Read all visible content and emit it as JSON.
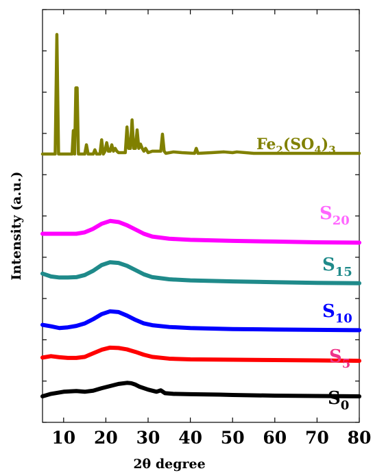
{
  "chart_data": {
    "type": "line",
    "title": "",
    "xlabel": "2θ degree",
    "ylabel": "Intensity (a.u.)",
    "xlim": [
      5,
      80
    ],
    "xticks": [
      10,
      20,
      30,
      40,
      50,
      60,
      70,
      80
    ],
    "xtick_labels": [
      "10",
      "20",
      "30",
      "40",
      "50",
      "60",
      "70",
      "80"
    ],
    "y_ticks_labeled": false,
    "grid": false,
    "legend": "inline-labels-right",
    "series": [
      {
        "key": "s0",
        "label_main": "S",
        "label_sub": "0",
        "color": "#000000",
        "x": [
          5,
          7,
          10,
          13,
          15,
          17,
          19,
          21,
          23,
          25,
          26,
          27,
          28,
          30,
          32,
          33,
          34,
          36,
          40,
          47,
          50,
          60,
          70,
          80
        ],
        "y": [
          0.015,
          0.05,
          0.08,
          0.09,
          0.08,
          0.095,
          0.13,
          0.16,
          0.19,
          0.205,
          0.2,
          0.18,
          0.15,
          0.11,
          0.08,
          0.1,
          0.06,
          0.05,
          0.045,
          0.04,
          0.035,
          0.025,
          0.02,
          0.015
        ]
      },
      {
        "key": "s5",
        "label_main": "S",
        "label_sub": "5",
        "color": "#ff0000",
        "x": [
          5,
          7,
          9,
          11,
          13,
          15,
          17,
          19,
          21,
          23,
          25,
          27,
          29,
          31,
          35,
          40,
          50,
          60,
          70,
          80
        ],
        "y": [
          0.56,
          0.58,
          0.565,
          0.555,
          0.555,
          0.57,
          0.62,
          0.67,
          0.7,
          0.695,
          0.675,
          0.64,
          0.6,
          0.57,
          0.545,
          0.535,
          0.53,
          0.525,
          0.52,
          0.515
        ]
      },
      {
        "key": "s10",
        "label_main": "S",
        "label_sub": "10",
        "color": "#0000ff",
        "x": [
          5,
          7,
          9,
          11,
          13,
          15,
          17,
          19,
          21,
          23,
          25,
          27,
          29,
          31,
          35,
          40,
          50,
          60,
          70,
          80
        ],
        "y": [
          1.02,
          1.0,
          0.975,
          0.985,
          1.005,
          1.04,
          1.1,
          1.17,
          1.21,
          1.2,
          1.15,
          1.09,
          1.04,
          1.015,
          0.99,
          0.975,
          0.96,
          0.955,
          0.95,
          0.945
        ]
      },
      {
        "key": "s15",
        "label_main": "S",
        "label_sub": "15",
        "color": "#1f8a8a",
        "x": [
          5,
          7,
          9,
          11,
          13,
          15,
          17,
          19,
          21,
          23,
          25,
          27,
          29,
          31,
          35,
          40,
          50,
          60,
          70,
          80
        ],
        "y": [
          1.74,
          1.7,
          1.685,
          1.685,
          1.69,
          1.72,
          1.78,
          1.86,
          1.9,
          1.89,
          1.85,
          1.79,
          1.73,
          1.69,
          1.66,
          1.645,
          1.63,
          1.62,
          1.61,
          1.605
        ]
      },
      {
        "key": "s20",
        "label_main": "S",
        "label_sub": "20",
        "color": "#ff00ff",
        "x": [
          5,
          7,
          9,
          11,
          13,
          15,
          17,
          19,
          21,
          23,
          25,
          27,
          29,
          31,
          35,
          40,
          50,
          60,
          70,
          80
        ],
        "y": [
          2.3,
          2.3,
          2.3,
          2.3,
          2.3,
          2.32,
          2.37,
          2.44,
          2.48,
          2.465,
          2.42,
          2.36,
          2.3,
          2.26,
          2.23,
          2.215,
          2.2,
          2.19,
          2.18,
          2.175
        ]
      },
      {
        "key": "fe2so43",
        "label_main": "Fe",
        "label_sub": "2",
        "label_rest": [
          "(SO",
          "4",
          ")",
          "3"
        ],
        "color": "#808000",
        "x": [
          5,
          8,
          8.4,
          8.8,
          9.2,
          12,
          12.3,
          12.6,
          12.9,
          13.2,
          13.5,
          13.8,
          15,
          15.4,
          15.8,
          17,
          17.4,
          17.8,
          18.6,
          19,
          19.4,
          19.8,
          20.2,
          20.6,
          21,
          21.4,
          21.8,
          22.2,
          22.6,
          23,
          24.6,
          25,
          25.4,
          25.8,
          26.2,
          26.6,
          27,
          27.4,
          27.8,
          28.2,
          28.6,
          29,
          29.4,
          30,
          31,
          33,
          33.4,
          33.8,
          34.2,
          36,
          38,
          41,
          41.4,
          41.8,
          45,
          48,
          50,
          51,
          55,
          60,
          65,
          70,
          75,
          80
        ],
        "y": [
          3.42,
          3.42,
          5.1,
          3.42,
          3.42,
          3.42,
          3.75,
          3.42,
          4.35,
          4.35,
          3.42,
          3.42,
          3.42,
          3.55,
          3.42,
          3.42,
          3.48,
          3.42,
          3.42,
          3.62,
          3.42,
          3.46,
          3.58,
          3.46,
          3.46,
          3.55,
          3.46,
          3.5,
          3.46,
          3.44,
          3.44,
          3.8,
          3.5,
          3.5,
          3.9,
          3.5,
          3.5,
          3.76,
          3.5,
          3.56,
          3.5,
          3.46,
          3.5,
          3.44,
          3.46,
          3.46,
          3.7,
          3.46,
          3.43,
          3.45,
          3.44,
          3.43,
          3.5,
          3.43,
          3.44,
          3.45,
          3.44,
          3.45,
          3.43,
          3.43,
          3.43,
          3.43,
          3.43,
          3.43
        ]
      }
    ]
  }
}
